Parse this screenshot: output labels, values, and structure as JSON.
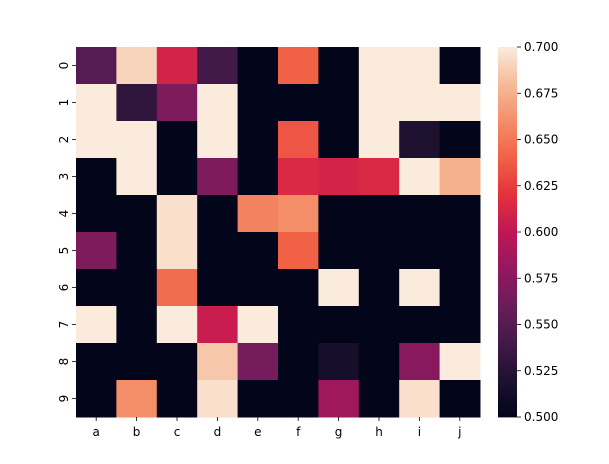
{
  "chart_data": {
    "type": "heatmap",
    "title": "",
    "xlabel": "",
    "ylabel": "",
    "x_categories": [
      "a",
      "b",
      "c",
      "d",
      "e",
      "f",
      "g",
      "h",
      "i",
      "j"
    ],
    "y_categories": [
      "0",
      "1",
      "2",
      "3",
      "4",
      "5",
      "6",
      "7",
      "8",
      "9"
    ],
    "values": [
      [
        0.55,
        0.69,
        0.61,
        0.54,
        0.5,
        0.64,
        0.5,
        0.7,
        0.7,
        0.5
      ],
      [
        0.7,
        0.53,
        0.57,
        0.7,
        0.5,
        0.5,
        0.5,
        0.7,
        0.7,
        0.7
      ],
      [
        0.7,
        0.7,
        0.5,
        0.7,
        0.5,
        0.635,
        0.5,
        0.7,
        0.52,
        0.5
      ],
      [
        0.5,
        0.7,
        0.5,
        0.57,
        0.5,
        0.615,
        0.61,
        0.615,
        0.7,
        0.675
      ],
      [
        0.5,
        0.5,
        0.695,
        0.5,
        0.655,
        0.66,
        0.5,
        0.5,
        0.5,
        0.5
      ],
      [
        0.57,
        0.5,
        0.695,
        0.5,
        0.5,
        0.64,
        0.5,
        0.5,
        0.5,
        0.5
      ],
      [
        0.5,
        0.5,
        0.645,
        0.5,
        0.5,
        0.5,
        0.7,
        0.5,
        0.7,
        0.5
      ],
      [
        0.7,
        0.5,
        0.7,
        0.605,
        0.7,
        0.5,
        0.5,
        0.5,
        0.5,
        0.5
      ],
      [
        0.5,
        0.5,
        0.5,
        0.685,
        0.565,
        0.5,
        0.515,
        0.5,
        0.575,
        0.7
      ],
      [
        0.5,
        0.66,
        0.5,
        0.695,
        0.5,
        0.5,
        0.585,
        0.5,
        0.695,
        0.5
      ]
    ],
    "colorbar": {
      "range": [
        0.5,
        0.7
      ],
      "ticks": [
        "0.500",
        "0.525",
        "0.550",
        "0.575",
        "0.600",
        "0.625",
        "0.650",
        "0.675",
        "0.700"
      ],
      "colormap": "rocket"
    },
    "grid": false
  }
}
